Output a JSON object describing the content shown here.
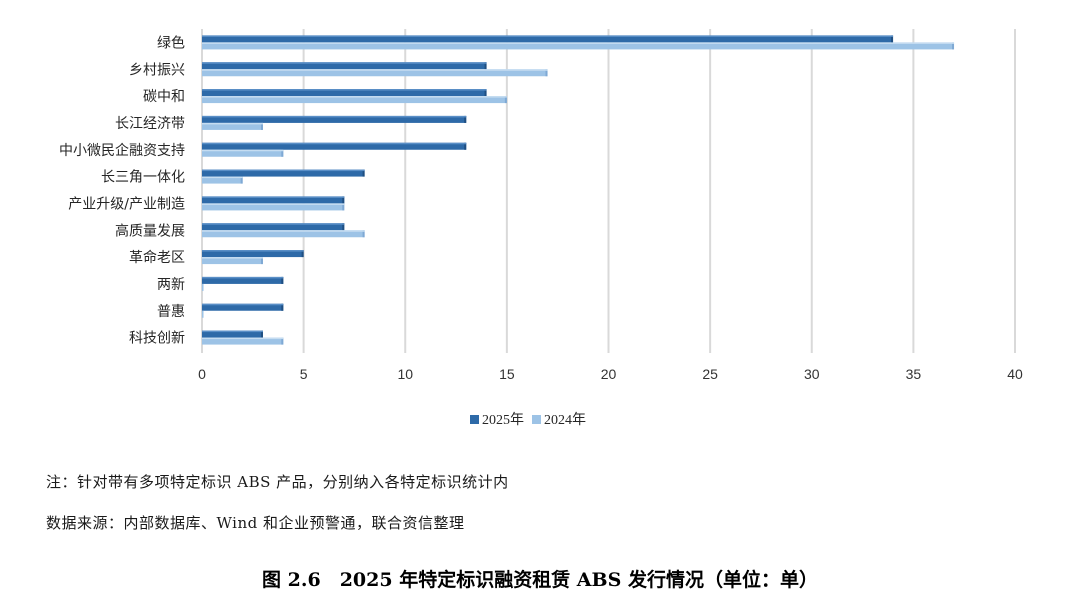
{
  "chart_data": {
    "type": "bar",
    "orientation": "horizontal",
    "categories": [
      "绿色",
      "乡村振兴",
      "碳中和",
      "长江经济带",
      "中小微民企融资支持",
      "长三角一体化",
      "产业升级/产业制造",
      "高质量发展",
      "革命老区",
      "两新",
      "普惠",
      "科技创新"
    ],
    "series": [
      {
        "name": "2025年",
        "values": [
          34,
          14,
          14,
          13,
          13,
          8,
          7,
          7,
          5,
          4,
          4,
          3
        ],
        "color": "#2e6aa8"
      },
      {
        "name": "2024年",
        "values": [
          37,
          17,
          15,
          3,
          4,
          2,
          7,
          8,
          3,
          0,
          0,
          4
        ],
        "color": "#9dc3e6"
      }
    ],
    "xlim": [
      0,
      40
    ],
    "xticks": [
      "0",
      "5",
      "10",
      "15",
      "20",
      "25",
      "30",
      "35",
      "40"
    ],
    "grid": "vertical",
    "legend_position": "bottom"
  },
  "notes": {
    "note1": "注：针对带有多项特定标识 ABS 产品，分别纳入各特定标识统计内",
    "note2": "数据来源：内部数据库、Wind 和企业预警通，联合资信整理"
  },
  "caption": "图 2.6　2025 年特定标识融资租赁 ABS 发行情况（单位：单）"
}
